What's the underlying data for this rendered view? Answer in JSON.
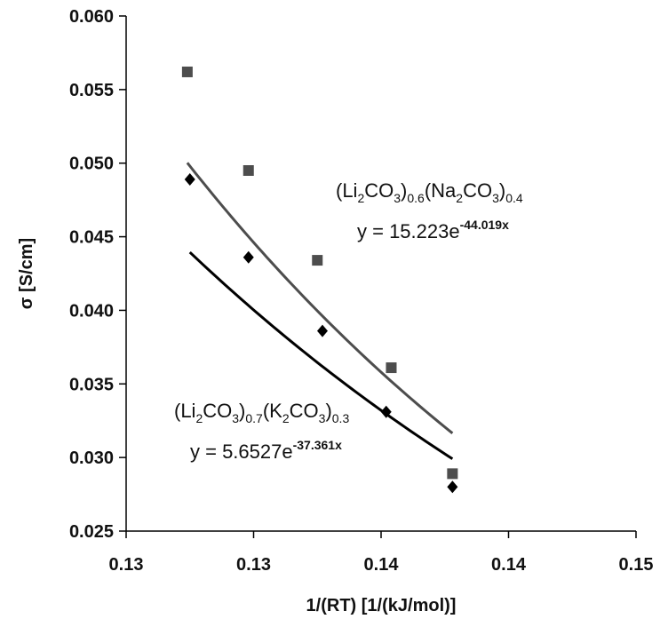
{
  "chart_data": {
    "type": "scatter",
    "xlabel": "1/(RT) [1/(kJ/mol)]",
    "ylabel": "σ [S/cm]",
    "x_tick_values": [
      0.1275,
      0.1325,
      0.1375,
      0.1425,
      0.1475
    ],
    "x_tick_labels": [
      "0.13",
      "0.13",
      "0.14",
      "0.14",
      "0.15"
    ],
    "xlim": [
      0.1275,
      0.1475
    ],
    "ylim": [
      0.025,
      0.06
    ],
    "y_ticks": [
      0.025,
      0.03,
      0.035,
      0.04,
      0.045,
      0.05,
      0.055,
      0.06
    ],
    "y_tick_labels": [
      "0.025",
      "0.030",
      "0.035",
      "0.040",
      "0.045",
      "0.050",
      "0.055",
      "0.060"
    ],
    "grid": false,
    "series": [
      {
        "marker": "square",
        "color": "#4d4d4d",
        "x": [
          0.1299,
          0.1323,
          0.135,
          0.1379,
          0.1403
        ],
        "y": [
          0.0562,
          0.0495,
          0.0434,
          0.0361,
          0.0289
        ],
        "fit": {
          "a": 15.223,
          "b": -44.019,
          "x_range": [
            0.1299,
            0.1403
          ]
        },
        "label_formula_main": "(Li",
        "label_parts": [
          "(Li",
          "2",
          "CO",
          "3",
          ")",
          "0.6",
          "(Na",
          "2",
          "CO",
          "3",
          ")",
          "0.4"
        ],
        "equation_base": "y = 15.223e",
        "equation_exp": "-44.019x"
      },
      {
        "marker": "diamond",
        "color": "#000000",
        "x": [
          0.13,
          0.1323,
          0.1352,
          0.1377,
          0.1403
        ],
        "y": [
          0.0489,
          0.0436,
          0.0386,
          0.0331,
          0.028
        ],
        "fit": {
          "a": 5.6527,
          "b": -37.361,
          "x_range": [
            0.13,
            0.1403
          ]
        },
        "label_parts": [
          "(Li",
          "2",
          "CO",
          "3",
          ")",
          "0.7",
          "(K",
          "2",
          "CO",
          "3",
          ")",
          "0.3"
        ],
        "equation_base": "y = 5.6527e",
        "equation_exp": "-37.361x"
      }
    ]
  }
}
